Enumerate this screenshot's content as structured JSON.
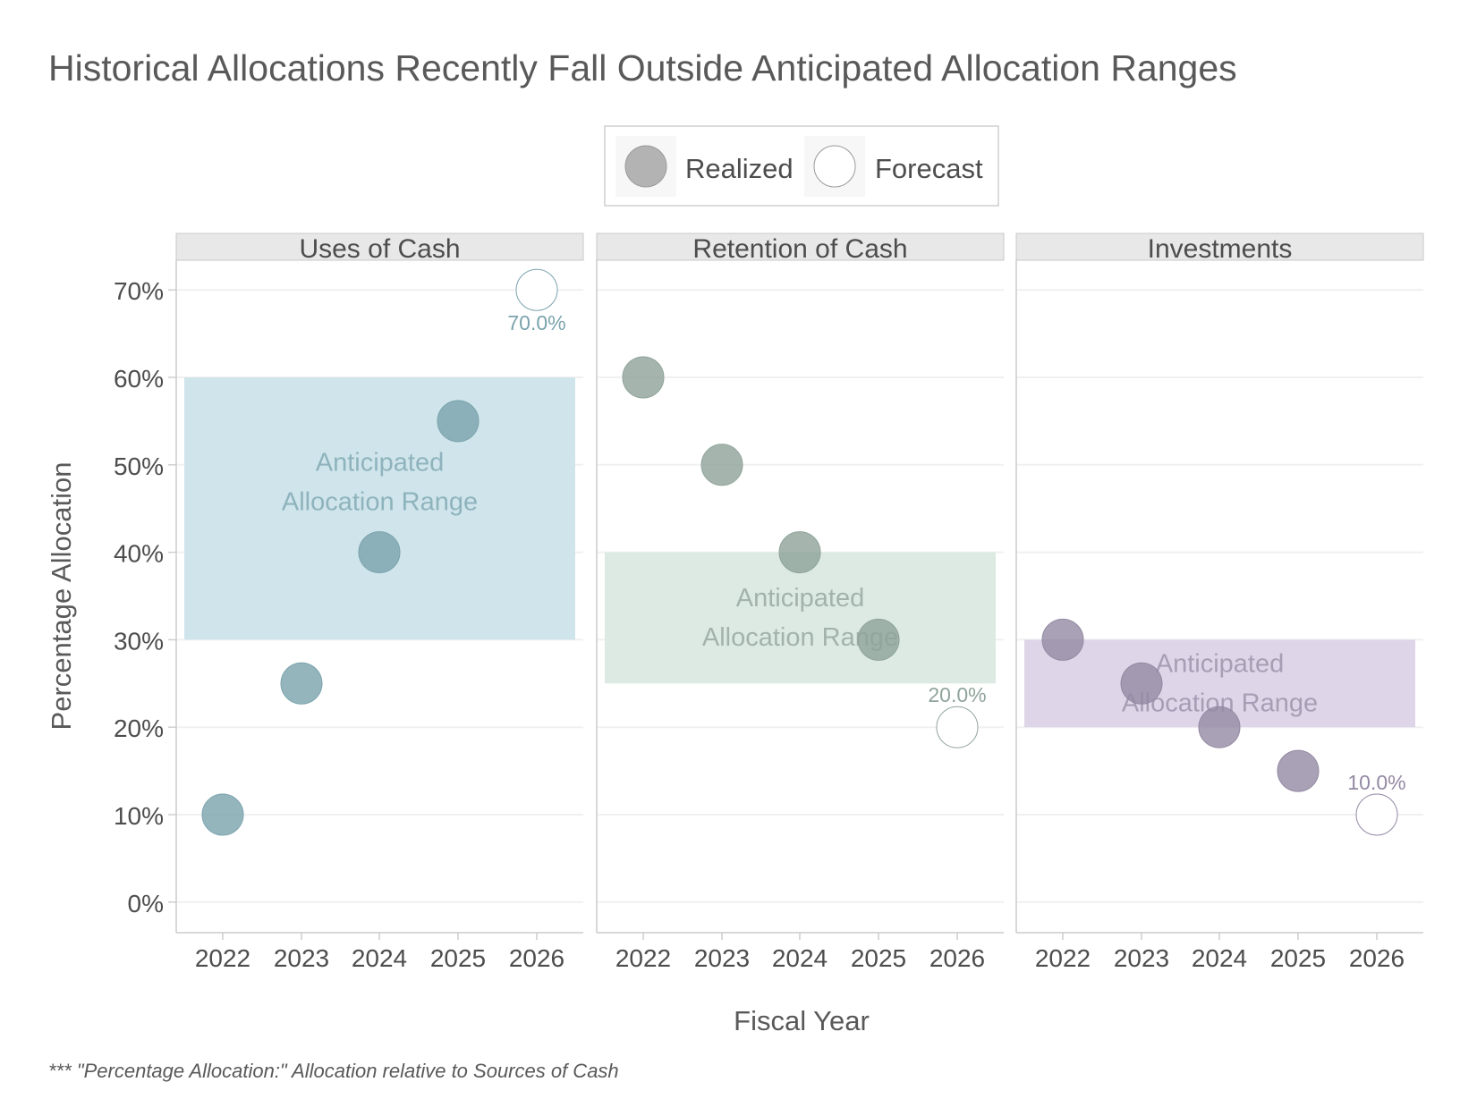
{
  "chart_data": {
    "type": "scatter",
    "title": "Historical Allocations Recently Fall Outside Anticipated Allocation Ranges",
    "xlabel": "Fiscal Year",
    "ylabel": "Percentage Allocation",
    "caption": "*** \"Percentage Allocation:\" Allocation relative to Sources of Cash",
    "legend": {
      "placement": "top-center",
      "items": [
        {
          "label": "Realized",
          "fill": "#b3b3b3",
          "stroke": "#9a9a9a"
        },
        {
          "label": "Forecast",
          "fill": "#ffffff",
          "stroke": "#9a9a9a"
        }
      ]
    },
    "x_categories": [
      "2022",
      "2023",
      "2024",
      "2025",
      "2026"
    ],
    "y_ticks": [
      0,
      10,
      20,
      30,
      40,
      50,
      60,
      70
    ],
    "y_tick_labels": [
      "0%",
      "10%",
      "20%",
      "30%",
      "40%",
      "50%",
      "60%",
      "70%"
    ],
    "ylim": [
      -3.5,
      73.5
    ],
    "grid": "horizontal-major",
    "range_label_line1": "Anticipated",
    "range_label_line2": "Allocation Range",
    "panels": [
      {
        "name": "Uses of Cash",
        "color": "#7ba3ad",
        "range_fill": "#cce4ea",
        "range_text_color": "#8fb3bd",
        "range": [
          30,
          60
        ],
        "realized": [
          {
            "x": "2022",
            "y": 10
          },
          {
            "x": "2023",
            "y": 25
          },
          {
            "x": "2024",
            "y": 40
          },
          {
            "x": "2025",
            "y": 55
          }
        ],
        "forecast": {
          "x": "2026",
          "y": 70,
          "label": "70.0%",
          "label_position": "below"
        }
      },
      {
        "name": "Retention of Cash",
        "color": "#8fa39a",
        "range_fill": "#dae9e2",
        "range_text_color": "#a3b3ab",
        "range": [
          25,
          40
        ],
        "realized": [
          {
            "x": "2022",
            "y": 60
          },
          {
            "x": "2023",
            "y": 50
          },
          {
            "x": "2024",
            "y": 40
          },
          {
            "x": "2025",
            "y": 30
          }
        ],
        "forecast": {
          "x": "2026",
          "y": 20,
          "label": "20.0%",
          "label_position": "above"
        }
      },
      {
        "name": "Investments",
        "color": "#9489a3",
        "range_fill": "#dcd4e7",
        "range_text_color": "#a89db5",
        "range": [
          20,
          30
        ],
        "realized": [
          {
            "x": "2022",
            "y": 30
          },
          {
            "x": "2023",
            "y": 25
          },
          {
            "x": "2024",
            "y": 20
          },
          {
            "x": "2025",
            "y": 15
          }
        ],
        "forecast": {
          "x": "2026",
          "y": 10,
          "label": "10.0%",
          "label_position": "above"
        }
      }
    ]
  }
}
